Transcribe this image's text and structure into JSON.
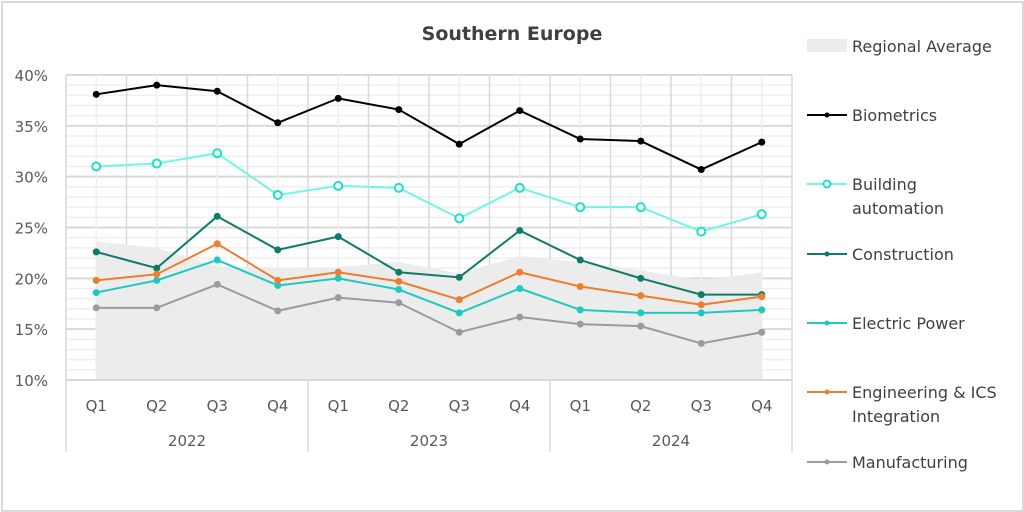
{
  "chart_data": {
    "type": "line",
    "title": "Southern Europe",
    "xlabel": "",
    "ylabel": "",
    "ylim": [
      10,
      40
    ],
    "y_ticks": [
      "10%",
      "15%",
      "20%",
      "25%",
      "30%",
      "35%",
      "40%"
    ],
    "y_tick_values": [
      10,
      15,
      20,
      25,
      30,
      35,
      40
    ],
    "grid": true,
    "legend_position": "right",
    "categories": [
      "Q1",
      "Q2",
      "Q3",
      "Q4",
      "Q1",
      "Q2",
      "Q3",
      "Q4",
      "Q1",
      "Q2",
      "Q3",
      "Q4"
    ],
    "groups": [
      {
        "label": "2022",
        "count": 4
      },
      {
        "label": "2023",
        "count": 4
      },
      {
        "label": "2024",
        "count": 4
      }
    ],
    "area": {
      "name": "Regional Average",
      "color": "#ececec",
      "values": [
        23.6,
        23.0,
        21.2,
        21.0,
        21.1,
        21.6,
        20.5,
        22.2,
        21.6,
        20.8,
        19.8,
        20.6
      ]
    },
    "series": [
      {
        "name": "Biometrics",
        "color": "#000000",
        "marker": "filled",
        "values": [
          38.1,
          39.0,
          38.4,
          35.3,
          37.7,
          36.6,
          33.2,
          36.5,
          33.7,
          33.5,
          30.7,
          33.4
        ]
      },
      {
        "name": "Building automation",
        "legend_lines": [
          "Building",
          "automation"
        ],
        "color": "#6ff7e4",
        "marker_color": "#1de0c8",
        "marker": "hollow",
        "values": [
          31.0,
          31.3,
          32.3,
          28.2,
          29.1,
          28.9,
          25.9,
          28.9,
          27.0,
          27.0,
          24.6,
          26.3
        ]
      },
      {
        "name": "Construction",
        "color": "#0f7b69",
        "marker": "filled",
        "values": [
          22.6,
          21.0,
          26.1,
          22.8,
          24.1,
          20.6,
          20.1,
          24.7,
          21.8,
          20.0,
          18.4,
          18.4
        ]
      },
      {
        "name": "Electric Power",
        "color": "#1ec9c0",
        "marker": "filled",
        "values": [
          18.6,
          19.8,
          21.8,
          19.3,
          20.0,
          18.9,
          16.6,
          19.0,
          16.9,
          16.6,
          16.6,
          16.9
        ]
      },
      {
        "name": "Engineering & ICS Integration",
        "legend_lines": [
          "Engineering & ICS",
          "Integration"
        ],
        "color": "#ed7d31",
        "marker": "filled",
        "values": [
          19.8,
          20.4,
          23.4,
          19.8,
          20.6,
          19.7,
          17.9,
          20.6,
          19.2,
          18.3,
          17.4,
          18.2
        ]
      },
      {
        "name": "Manufacturing",
        "color": "#9b9b9b",
        "marker": "filled",
        "values": [
          17.1,
          17.1,
          19.4,
          16.8,
          18.1,
          17.6,
          14.7,
          16.2,
          15.5,
          15.3,
          13.6,
          14.7
        ]
      }
    ]
  }
}
